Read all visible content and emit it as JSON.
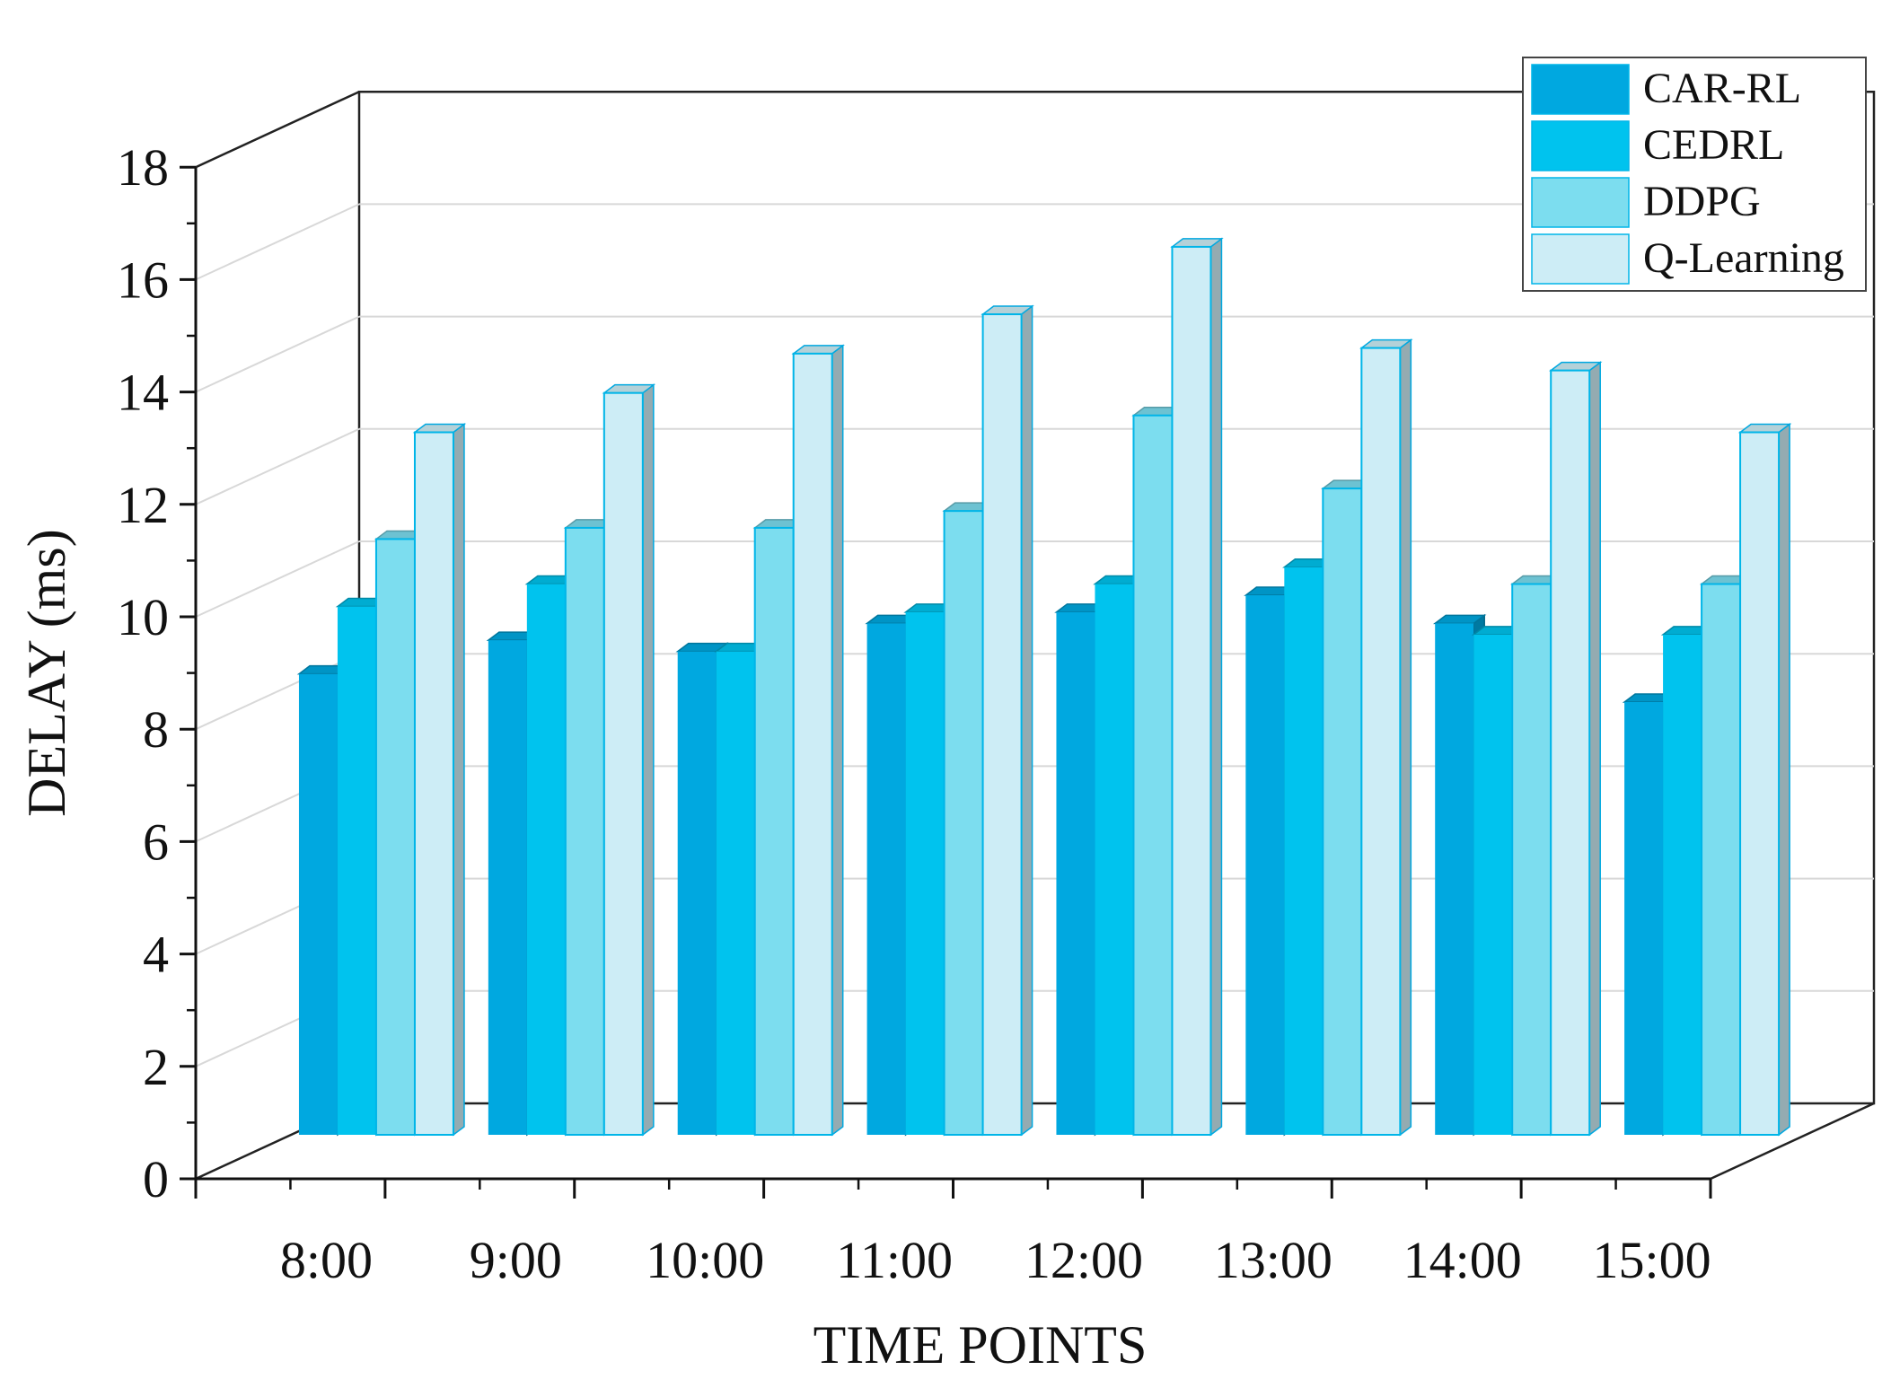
{
  "chart_data": {
    "type": "bar",
    "style": "3d-clustered",
    "categories": [
      "8:00",
      "9:00",
      "10:00",
      "11:00",
      "12:00",
      "13:00",
      "14:00",
      "15:00"
    ],
    "series": [
      {
        "name": "CAR-RL",
        "color": "#00A8E0",
        "values": [
          8.2,
          8.8,
          8.6,
          9.1,
          9.3,
          9.6,
          9.1,
          7.7
        ]
      },
      {
        "name": "CEDRL",
        "color": "#00C3EE",
        "values": [
          9.4,
          9.8,
          8.6,
          9.3,
          9.8,
          10.1,
          8.9,
          8.9
        ]
      },
      {
        "name": "DDPG",
        "color": "#7CDDEF",
        "values": [
          10.6,
          10.8,
          10.8,
          11.1,
          12.8,
          11.5,
          9.8,
          9.8
        ]
      },
      {
        "name": "Q-Learning",
        "color": "#CDEDF6",
        "values": [
          12.5,
          13.2,
          13.9,
          14.6,
          15.8,
          14.0,
          13.6,
          12.5
        ]
      }
    ],
    "xlabel": "TIME POINTS",
    "ylabel": "DELAY (ms)",
    "ylim": [
      0,
      18
    ],
    "yticks": [
      "0",
      "2",
      "4",
      "6",
      "8",
      "10",
      "12",
      "14",
      "16",
      "18"
    ],
    "grid": true,
    "legend": "top-right"
  }
}
